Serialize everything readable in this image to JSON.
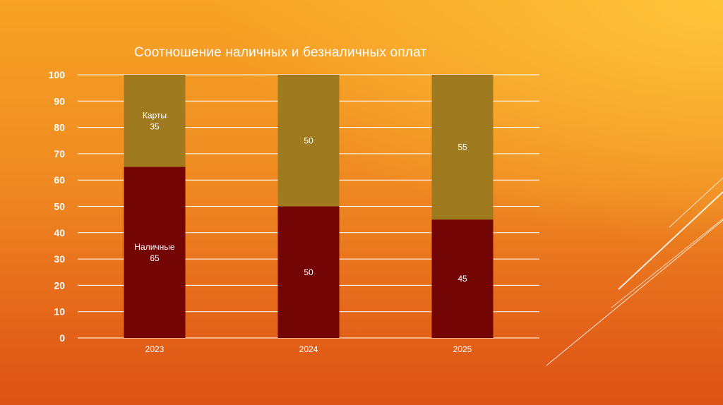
{
  "slide": {
    "decor": "diagonal-lines"
  },
  "chart_data": {
    "type": "bar",
    "stacked": true,
    "title": "Соотношение наличных и безналичных оплат",
    "xlabel": "",
    "ylabel": "",
    "categories": [
      "2023",
      "2024",
      "2025"
    ],
    "ylim": [
      0,
      100
    ],
    "yticks": [
      "0",
      "10",
      "20",
      "30",
      "40",
      "50",
      "60",
      "70",
      "80",
      "90",
      "100"
    ],
    "grid": true,
    "legend": "none",
    "series": [
      {
        "name": "Наличные",
        "values": [
          65,
          50,
          45
        ],
        "color": "#730505"
      },
      {
        "name": "Карты",
        "values": [
          35,
          50,
          55
        ],
        "color": "#a07a1e"
      }
    ],
    "data_labels": [
      [
        "Наличные\n65",
        "50",
        "45"
      ],
      [
        "Карты\n35",
        "50",
        "55"
      ]
    ],
    "colors": {
      "gridline": "#ffffff",
      "text": "#ffffff"
    }
  }
}
